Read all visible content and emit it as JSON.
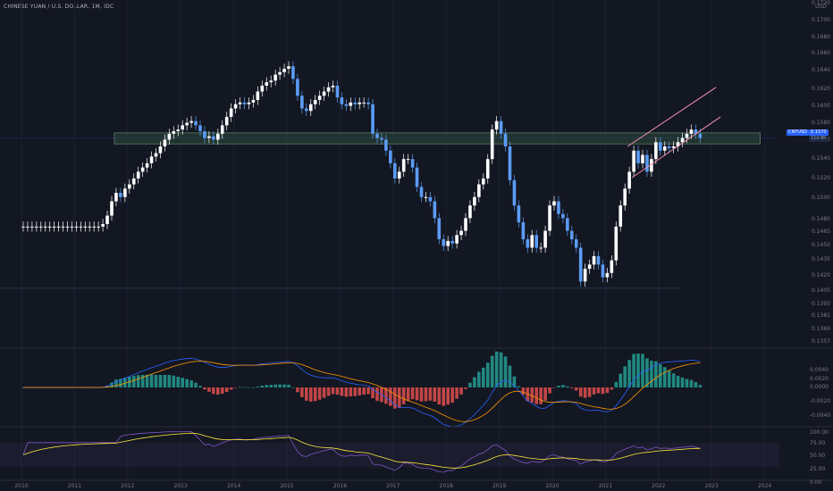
{
  "header": {
    "title": "CHINESE YUAN / U.S. DOLLAR, 1M, IDC"
  },
  "price_axis": {
    "currency": "USD",
    "ticks": [
      "0.1720",
      "0.1700",
      "0.1680",
      "0.1660",
      "0.1640",
      "0.1620",
      "0.1600",
      "0.1580",
      "0.1560",
      "0.1540",
      "0.1520",
      "0.1500",
      "0.1480",
      "0.1465",
      "0.1450",
      "0.1435",
      "0.1420",
      "0.1405",
      "0.1393",
      "0.1381",
      "0.1369",
      "0.1357"
    ],
    "current_symbol": "CNYUSD",
    "current_price": "0.1570",
    "current_countdown": "11d 8h"
  },
  "macd_axis": {
    "ticks": [
      "0.0040",
      "0.0020",
      "0.0000",
      "-0.0020",
      "-0.0040"
    ]
  },
  "rsi_axis": {
    "ticks": [
      "100.00",
      "75.00",
      "50.00",
      "25.00",
      "0.00"
    ]
  },
  "time_axis": {
    "ticks": [
      "2010",
      "2011",
      "2012",
      "2013",
      "2014",
      "2015",
      "2016",
      "2017",
      "2018",
      "2019",
      "2020",
      "2021",
      "2022",
      "2023",
      "2024"
    ]
  },
  "colors": {
    "up": "#ffffff",
    "down": "#5b9cf6",
    "zone": "#2e4a3a",
    "channel": "#f48fb1",
    "macd_pos": "#26a69a",
    "macd_neg": "#ef5350",
    "macd_line": "#2962ff",
    "signal_line": "#ff9800",
    "rsi_line": "#7e57c2",
    "rsi_ma": "#ffeb3b"
  },
  "chart_data": [
    {
      "type": "candlestick",
      "title": "",
      "x_start": "2010-01",
      "interval": "1M",
      "ylim": [
        0.134,
        0.1725
      ],
      "close": [
        0.1465,
        0.1465,
        0.1465,
        0.1465,
        0.1465,
        0.1465,
        0.1465,
        0.1465,
        0.1465,
        0.1465,
        0.1465,
        0.1465,
        0.1465,
        0.1465,
        0.1465,
        0.1465,
        0.1465,
        0.1465,
        0.1468,
        0.1478,
        0.1495,
        0.1505,
        0.15,
        0.151,
        0.1515,
        0.1522,
        0.153,
        0.1535,
        0.154,
        0.1548,
        0.1552,
        0.156,
        0.1568,
        0.1575,
        0.1578,
        0.158,
        0.1585,
        0.1588,
        0.159,
        0.1585,
        0.1578,
        0.157,
        0.1572,
        0.1568,
        0.1575,
        0.1585,
        0.1595,
        0.1605,
        0.161,
        0.1612,
        0.161,
        0.1612,
        0.1615,
        0.1625,
        0.1632,
        0.1636,
        0.1638,
        0.1645,
        0.1648,
        0.1652,
        0.1655,
        0.164,
        0.162,
        0.1605,
        0.1602,
        0.161,
        0.1615,
        0.162,
        0.1625,
        0.163,
        0.1632,
        0.1618,
        0.161,
        0.1608,
        0.1612,
        0.161,
        0.1612,
        0.1612,
        0.161,
        0.1575,
        0.157,
        0.1568,
        0.1555,
        0.154,
        0.1522,
        0.153,
        0.1545,
        0.1545,
        0.1535,
        0.1512,
        0.15,
        0.15,
        0.1495,
        0.1475,
        0.145,
        0.1442,
        0.1448,
        0.1445,
        0.1455,
        0.146,
        0.1475,
        0.149,
        0.15,
        0.1515,
        0.1522,
        0.1545,
        0.158,
        0.159,
        0.1575,
        0.156,
        0.152,
        0.149,
        0.147,
        0.145,
        0.144,
        0.1455,
        0.144,
        0.144,
        0.146,
        0.149,
        0.1495,
        0.148,
        0.1475,
        0.146,
        0.145,
        0.144,
        0.14,
        0.1415,
        0.142,
        0.143,
        0.142,
        0.1405,
        0.141,
        0.1425,
        0.1465,
        0.149,
        0.151,
        0.153,
        0.1555,
        0.154,
        0.155,
        0.153,
        0.1545,
        0.1565,
        0.1555,
        0.156,
        0.1558,
        0.156,
        0.1565,
        0.157,
        0.1575,
        0.158,
        0.1575,
        0.157
      ],
      "channel_upper": [
        [
          "2021-06",
          0.156
        ],
        [
          "2023-02",
          0.163
        ]
      ],
      "channel_lower": [
        [
          "2021-07",
          0.1523
        ],
        [
          "2023-03",
          0.1595
        ]
      ],
      "zone": {
        "from": "2011-10",
        "to": "2023-12",
        "top": 0.1576,
        "bottom": 0.1563
      },
      "support_line": 0.1392
    },
    {
      "type": "histogram",
      "title": "",
      "ylim": [
        -0.005,
        0.005
      ],
      "lines": [
        "MACD",
        "Signal"
      ]
    },
    {
      "type": "line",
      "title": "",
      "ylim": [
        0,
        100
      ],
      "band": [
        25,
        75
      ]
    }
  ]
}
